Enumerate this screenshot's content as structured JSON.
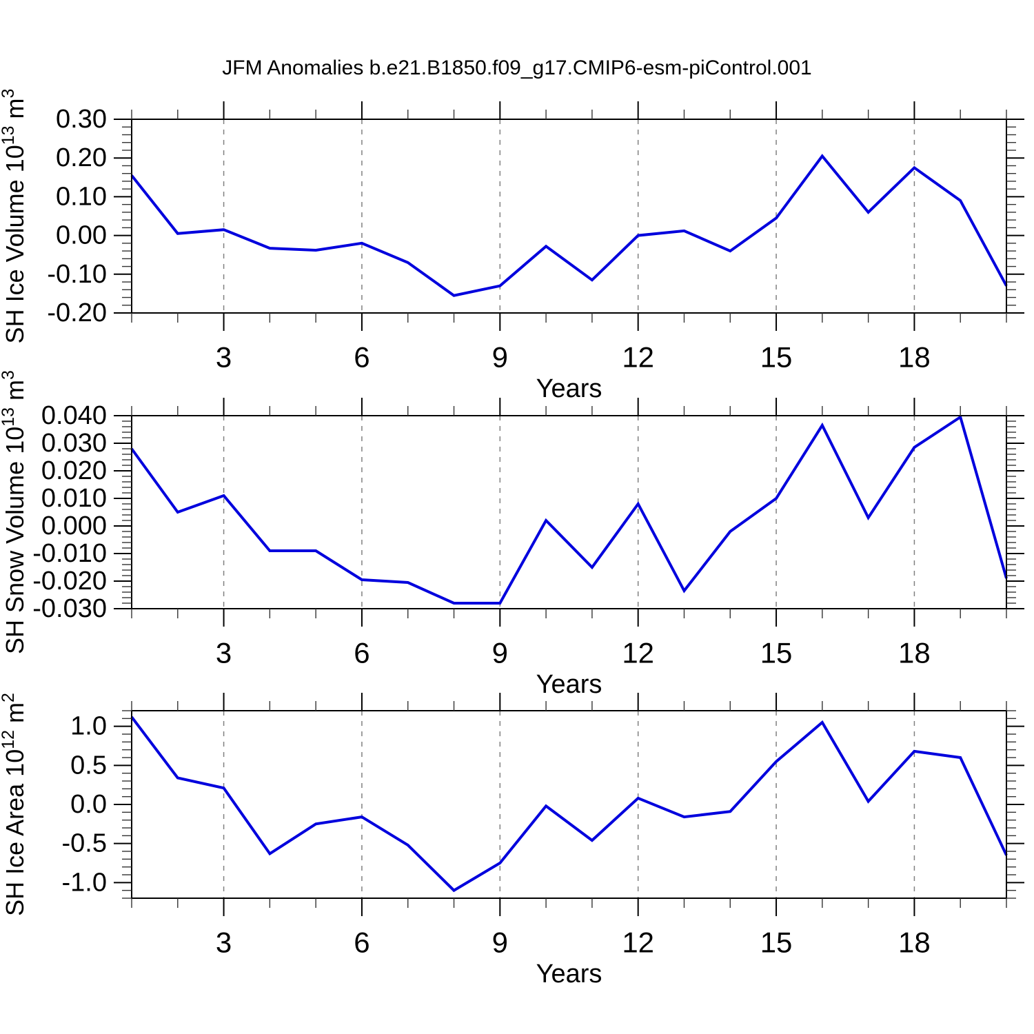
{
  "title": "JFM Anomalies b.e21.B1850.f09_g17.CMIP6-esm-piControl.001",
  "colors": {
    "line": "#0000dd",
    "grid": "#808080",
    "axis": "#000000",
    "minor_tick": "#333333",
    "background": "#ffffff",
    "text": "#000000"
  },
  "x_axis": {
    "label": "Years",
    "range": [
      1,
      20
    ],
    "major_ticks": [
      3,
      6,
      9,
      12,
      15,
      18
    ],
    "major_tick_labels": [
      "3",
      "6",
      "9",
      "12",
      "15",
      "18"
    ],
    "minor_step": 1,
    "grid": true
  },
  "chart_data": [
    {
      "type": "line",
      "name": "sh-ice-volume",
      "ylabel": "SH Ice Volume 10^13 m^3",
      "ylabel_parts": [
        {
          "t": "SH Ice Volume 10",
          "sup": false
        },
        {
          "t": "13",
          "sup": true
        },
        {
          "t": " m",
          "sup": false
        },
        {
          "t": "3",
          "sup": true
        }
      ],
      "xlabel": "Years",
      "x": [
        1,
        2,
        3,
        4,
        5,
        6,
        7,
        8,
        9,
        10,
        11,
        12,
        13,
        14,
        15,
        16,
        17,
        18,
        19,
        20
      ],
      "values": [
        0.155,
        0.005,
        0.015,
        -0.033,
        -0.038,
        -0.02,
        -0.07,
        -0.155,
        -0.13,
        -0.028,
        -0.115,
        0.0,
        0.012,
        -0.04,
        0.045,
        0.205,
        0.06,
        0.175,
        0.09,
        -0.13
      ],
      "ylim": [
        -0.2,
        0.3
      ],
      "ytick_values": [
        0.3,
        0.2,
        0.1,
        0.0,
        -0.1,
        -0.2
      ],
      "ytick_labels": [
        "0.30",
        "0.20",
        "0.10",
        "0.00",
        "-0.10",
        "-0.20"
      ],
      "yminor_step": 0.02,
      "grid_x": true
    },
    {
      "type": "line",
      "name": "sh-snow-volume",
      "ylabel": "SH Snow Volume 10^13 m^3",
      "ylabel_parts": [
        {
          "t": "SH Snow Volume 10",
          "sup": false
        },
        {
          "t": "13",
          "sup": true
        },
        {
          "t": " m",
          "sup": false
        },
        {
          "t": "3",
          "sup": true
        }
      ],
      "xlabel": "Years",
      "x": [
        1,
        2,
        3,
        4,
        5,
        6,
        7,
        8,
        9,
        10,
        11,
        12,
        13,
        14,
        15,
        16,
        17,
        18,
        19,
        20
      ],
      "values": [
        0.028,
        0.005,
        0.011,
        -0.009,
        -0.009,
        -0.0195,
        -0.0205,
        -0.028,
        -0.028,
        0.002,
        -0.015,
        0.008,
        -0.0235,
        -0.002,
        0.01,
        0.0365,
        0.003,
        0.0285,
        0.0395,
        -0.019
      ],
      "ylim": [
        -0.03,
        0.04
      ],
      "ytick_values": [
        0.04,
        0.03,
        0.02,
        0.01,
        0.0,
        -0.01,
        -0.02,
        -0.03
      ],
      "ytick_labels": [
        "0.040",
        "0.030",
        "0.020",
        "0.010",
        "0.000",
        "-0.010",
        "-0.020",
        "-0.030"
      ],
      "yminor_step": 0.002,
      "grid_x": true
    },
    {
      "type": "line",
      "name": "sh-ice-area",
      "ylabel": "SH Ice Area 10^12 m^2",
      "ylabel_parts": [
        {
          "t": "SH Ice Area 10",
          "sup": false
        },
        {
          "t": "12",
          "sup": true
        },
        {
          "t": " m",
          "sup": false
        },
        {
          "t": "2",
          "sup": true
        }
      ],
      "xlabel": "Years",
      "x": [
        1,
        2,
        3,
        4,
        5,
        6,
        7,
        8,
        9,
        10,
        11,
        12,
        13,
        14,
        15,
        16,
        17,
        18,
        19,
        20
      ],
      "values": [
        1.12,
        0.34,
        0.21,
        -0.63,
        -0.25,
        -0.16,
        -0.52,
        -1.1,
        -0.75,
        -0.02,
        -0.46,
        0.08,
        -0.16,
        -0.09,
        0.55,
        1.05,
        0.04,
        0.68,
        0.6,
        -0.65
      ],
      "ylim": [
        -1.2,
        1.2
      ],
      "ytick_values": [
        1.0,
        0.5,
        0.0,
        -0.5,
        -1.0
      ],
      "ytick_labels": [
        "1.0",
        "0.5",
        "0.0",
        "-0.5",
        "-1.0"
      ],
      "yminor_step": 0.1,
      "grid_x": true
    }
  ]
}
